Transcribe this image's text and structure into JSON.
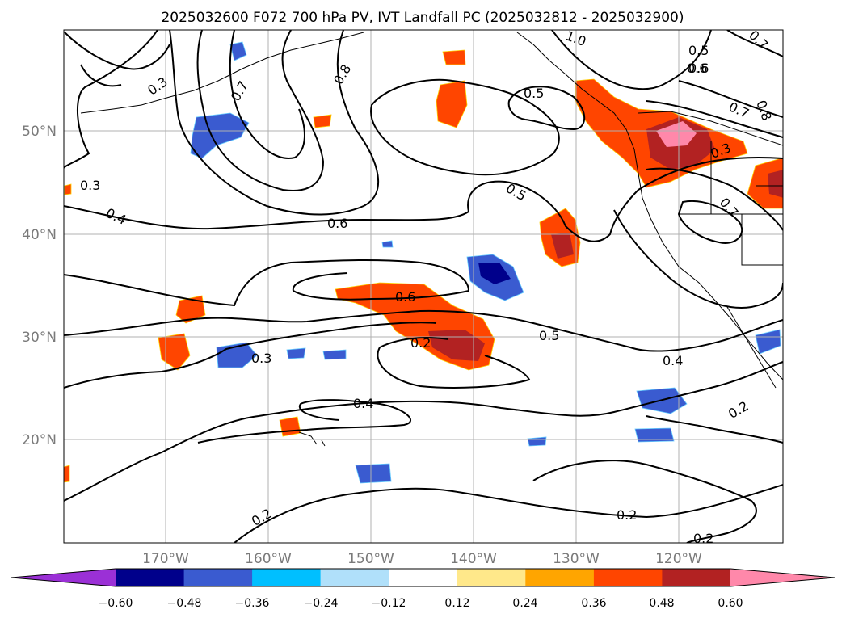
{
  "title": "2025032600 F072 700 hPa PV, IVT Landfall PC (2025032812 - 2025032900)",
  "lon_labels": [
    "170°W",
    "160°W",
    "150°W",
    "140°W",
    "130°W",
    "120°W"
  ],
  "lat_labels": [
    "50°N",
    "40°N",
    "30°N",
    "20°N"
  ],
  "contour_labels": [
    "1.0",
    "0.3",
    "0.7",
    "0.8",
    "0.5",
    "0.6",
    "0.3",
    "0.4",
    "0.6",
    "0.5",
    "0.6",
    "0.3",
    "0.2",
    "0.5",
    "0.4",
    "0.4",
    "0.2",
    "0.2",
    "0.2",
    "0.5",
    "0.6",
    "0.7",
    "0.8",
    "0.7",
    "0.3",
    "0.7",
    "0.2"
  ],
  "colorbar": {
    "tick_labels": [
      "−0.60",
      "−0.48",
      "−0.36",
      "−0.24",
      "−0.12",
      "0.12",
      "0.24",
      "0.36",
      "0.48",
      "0.60"
    ],
    "colors": [
      "#9b30d6",
      "#00008b",
      "#3a5bd0",
      "#00bfff",
      "#b0e0fa",
      "#ffffff",
      "#ffe88a",
      "#ffa500",
      "#ff4500",
      "#b22222",
      "#ff88aa"
    ]
  }
}
